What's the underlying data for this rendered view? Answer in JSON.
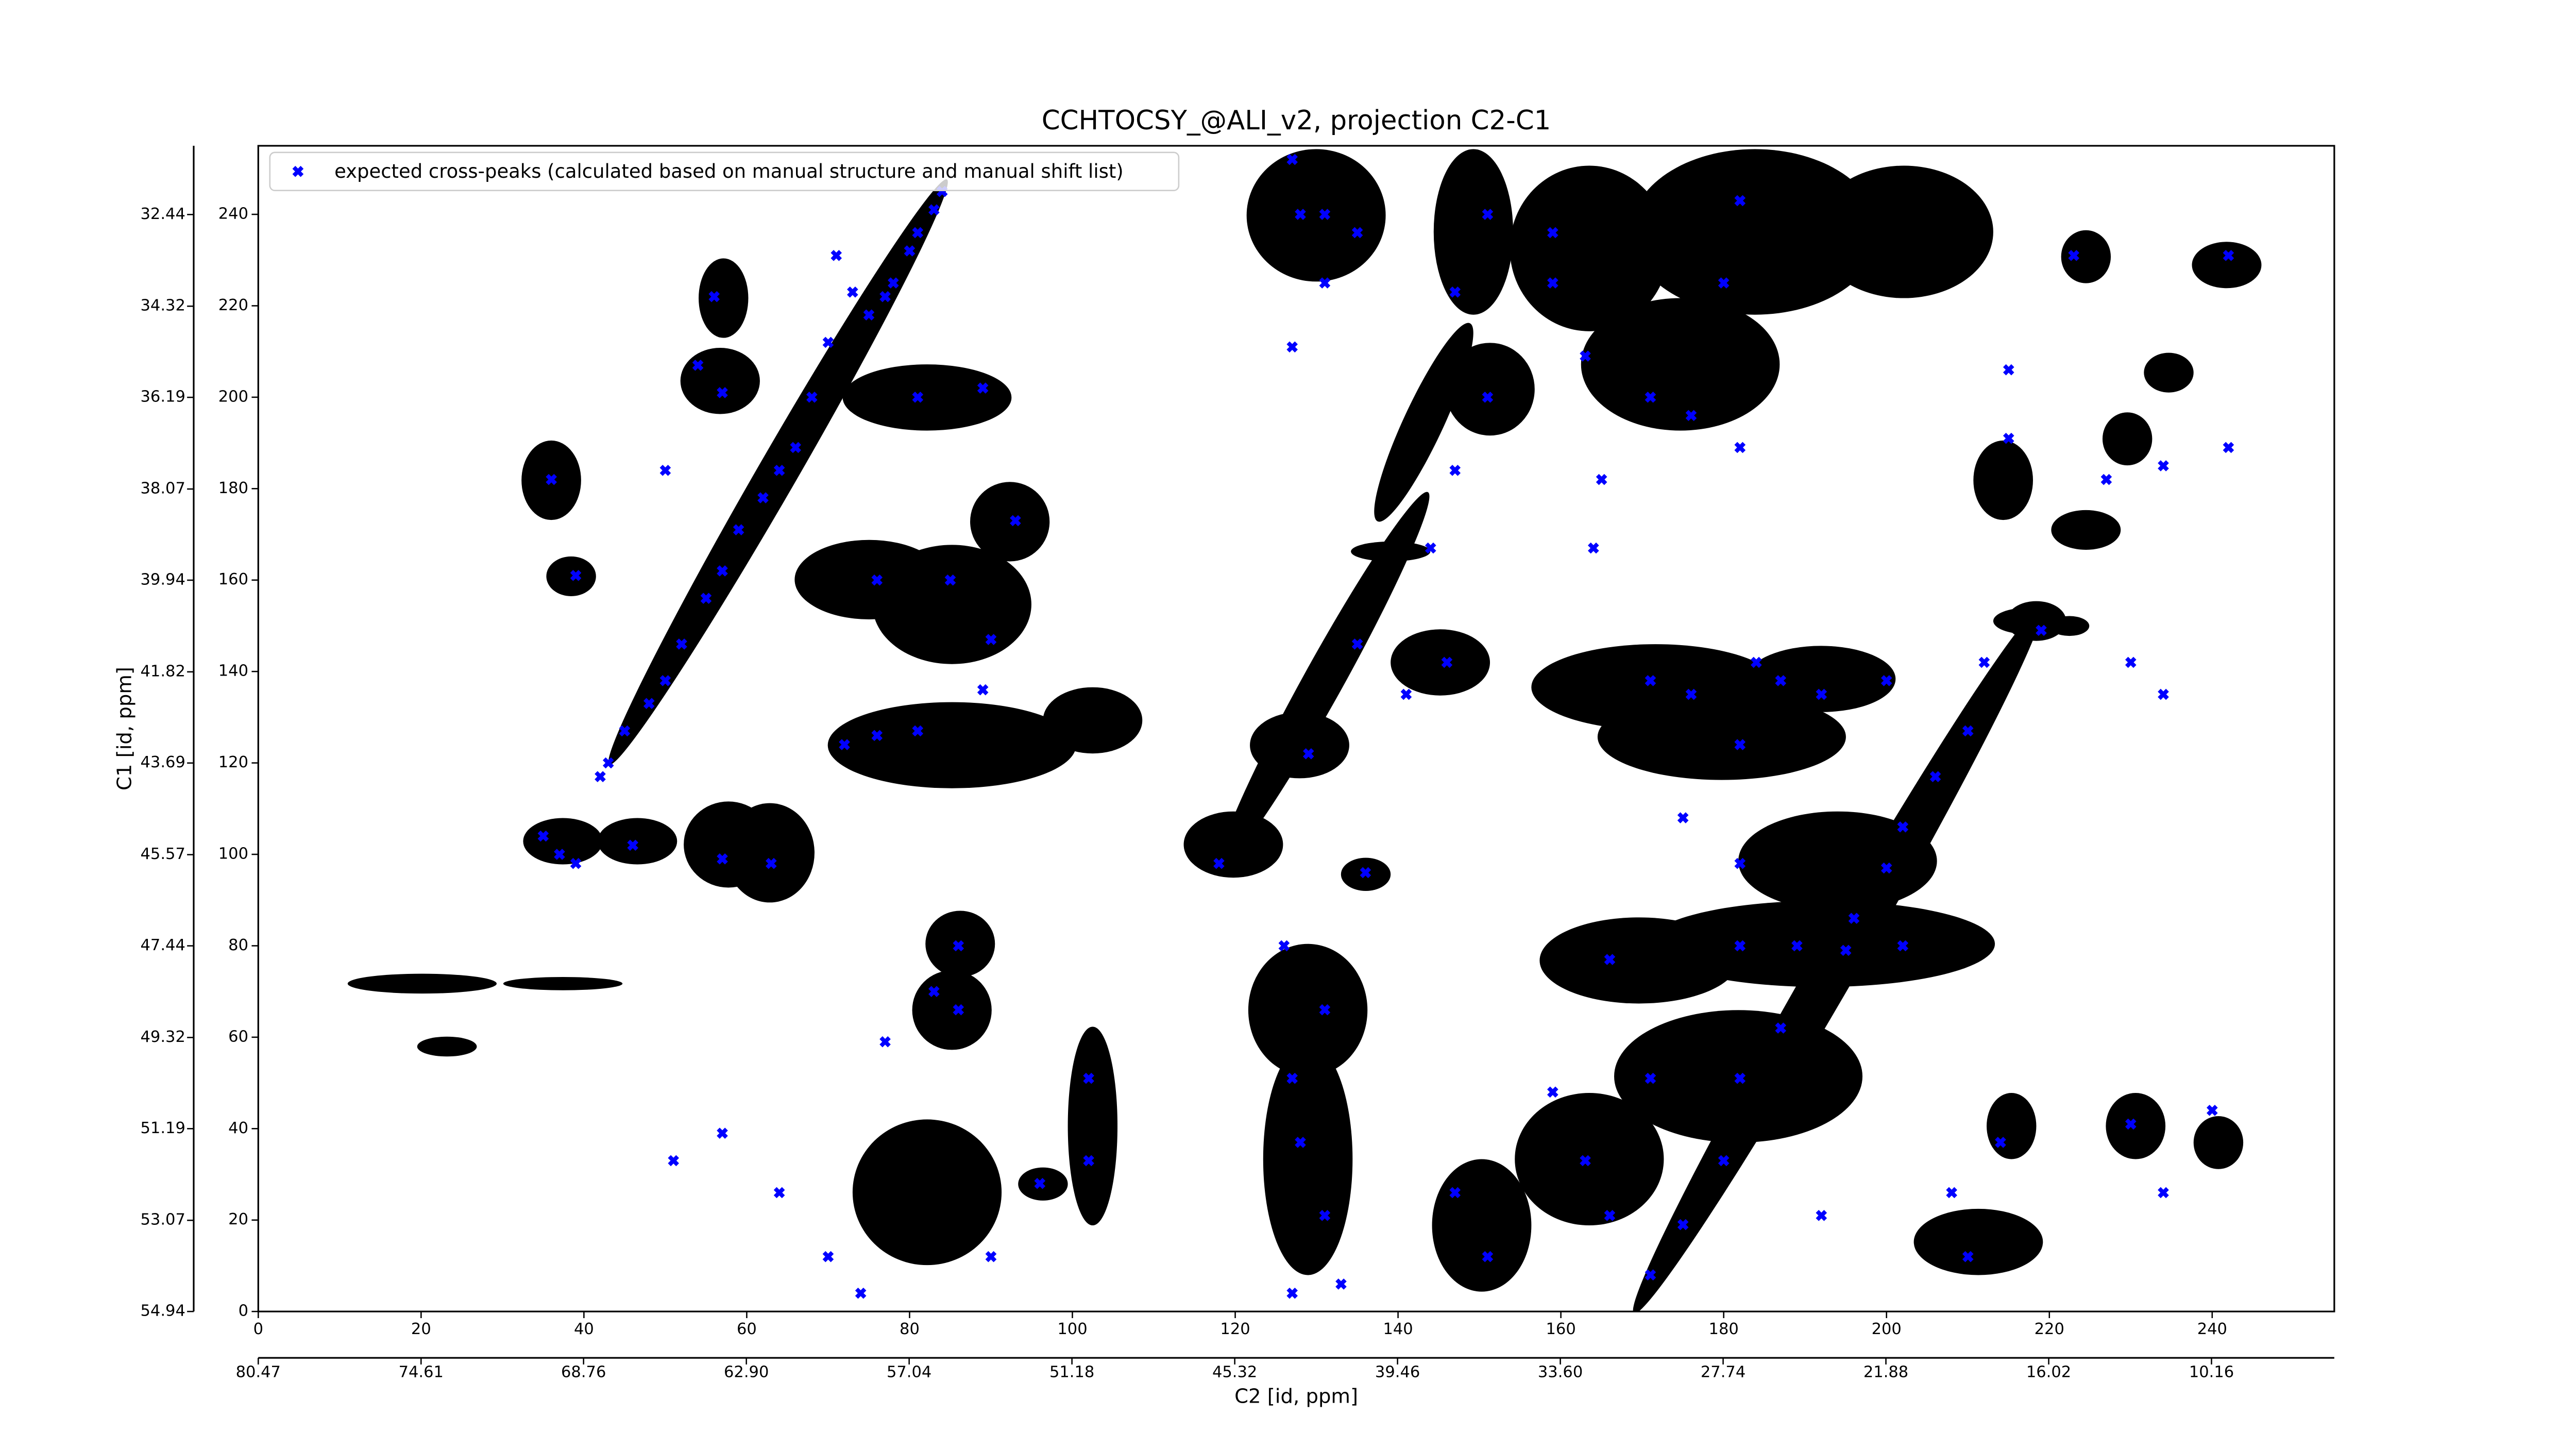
{
  "chart_data": {
    "type": "scatter",
    "title": "CCHTOCSY_@ALI_v2, projection C2-C1",
    "xlabel": "C2 [id, ppm]",
    "ylabel": "C1 [id, ppm]",
    "xlim": [
      0,
      255
    ],
    "ylim": [
      0,
      255
    ],
    "xticks": [
      0,
      20,
      40,
      60,
      80,
      100,
      120,
      140,
      160,
      180,
      200,
      220,
      240
    ],
    "yticks": [
      0,
      20,
      40,
      60,
      80,
      100,
      120,
      140,
      160,
      180,
      200,
      220,
      240
    ],
    "x2lim": [
      80.47,
      5.74
    ],
    "x2ticks": [
      80.47,
      74.61,
      68.76,
      {
        "value": 62.9,
        "label": "62.90"
      },
      57.04,
      51.18,
      45.32,
      39.46,
      {
        "value": 33.6,
        "label": "33.60"
      },
      27.74,
      21.88,
      16.02,
      10.16
    ],
    "y2lim": [
      54.94,
      31.03
    ],
    "y2ticks": [
      54.94,
      53.07,
      51.19,
      49.32,
      47.44,
      45.57,
      43.69,
      41.82,
      39.94,
      38.07,
      36.19,
      34.32,
      32.44
    ],
    "legend": "upper left",
    "series": [
      {
        "name": "expected cross-peaks (calculated based on manual structure and manual shift list)",
        "color": "#0000ff",
        "x": [
          71,
          73,
          75,
          77,
          78,
          80,
          81,
          83,
          84,
          70,
          68,
          66,
          64,
          62,
          59,
          57,
          55,
          52,
          50,
          48,
          45,
          43,
          42,
          56,
          57,
          54,
          36,
          39,
          50,
          35,
          37,
          39,
          46,
          57,
          63,
          72,
          76,
          81,
          89,
          90,
          85,
          76,
          81,
          89,
          93,
          86,
          83,
          86,
          77,
          57,
          51,
          64,
          70,
          74,
          90,
          102,
          102,
          96,
          127,
          128,
          131,
          127,
          131,
          135,
          129,
          118,
          136,
          126,
          131,
          127,
          128,
          131,
          133,
          127,
          151,
          147,
          151,
          147,
          144,
          135,
          146,
          141,
          159,
          163,
          159,
          171,
          176,
          182,
          180,
          182,
          165,
          164,
          171,
          176,
          184,
          182,
          187,
          192,
          200,
          175,
          182,
          166,
          182,
          189,
          195,
          202,
          171,
          182,
          187,
          180,
          175,
          171,
          159,
          163,
          151,
          147,
          166,
          192,
          208,
          210,
          214,
          215,
          227,
          234,
          242,
          242,
          223,
          215,
          219,
          230,
          234,
          240,
          230,
          234,
          212,
          210,
          206,
          202,
          200,
          196
        ],
        "y": [
          231,
          223,
          218,
          222,
          225,
          232,
          236,
          241,
          245,
          212,
          200,
          189,
          184,
          178,
          171,
          162,
          156,
          146,
          138,
          133,
          127,
          120,
          117,
          222,
          201,
          207,
          182,
          161,
          184,
          104,
          100,
          98,
          102,
          99,
          98,
          124,
          126,
          127,
          136,
          147,
          160,
          160,
          200,
          202,
          173,
          80,
          70,
          66,
          59,
          39,
          33,
          26,
          12,
          4,
          12,
          51,
          33,
          28,
          252,
          240,
          240,
          211,
          225,
          236,
          122,
          98,
          96,
          80,
          66,
          51,
          37,
          21,
          6,
          4,
          240,
          223,
          200,
          184,
          167,
          146,
          142,
          135,
          236,
          209,
          225,
          200,
          196,
          189,
          225,
          243,
          182,
          167,
          138,
          135,
          142,
          124,
          138,
          135,
          138,
          108,
          98,
          77,
          80,
          80,
          79,
          80,
          51,
          51,
          62,
          33,
          19,
          8,
          48,
          33,
          12,
          26,
          21,
          21,
          26,
          12,
          37,
          191,
          182,
          185,
          189,
          231,
          231,
          206,
          149,
          142,
          135,
          44,
          41,
          26,
          142,
          127,
          117,
          106,
          97,
          86
        ]
      }
    ]
  }
}
